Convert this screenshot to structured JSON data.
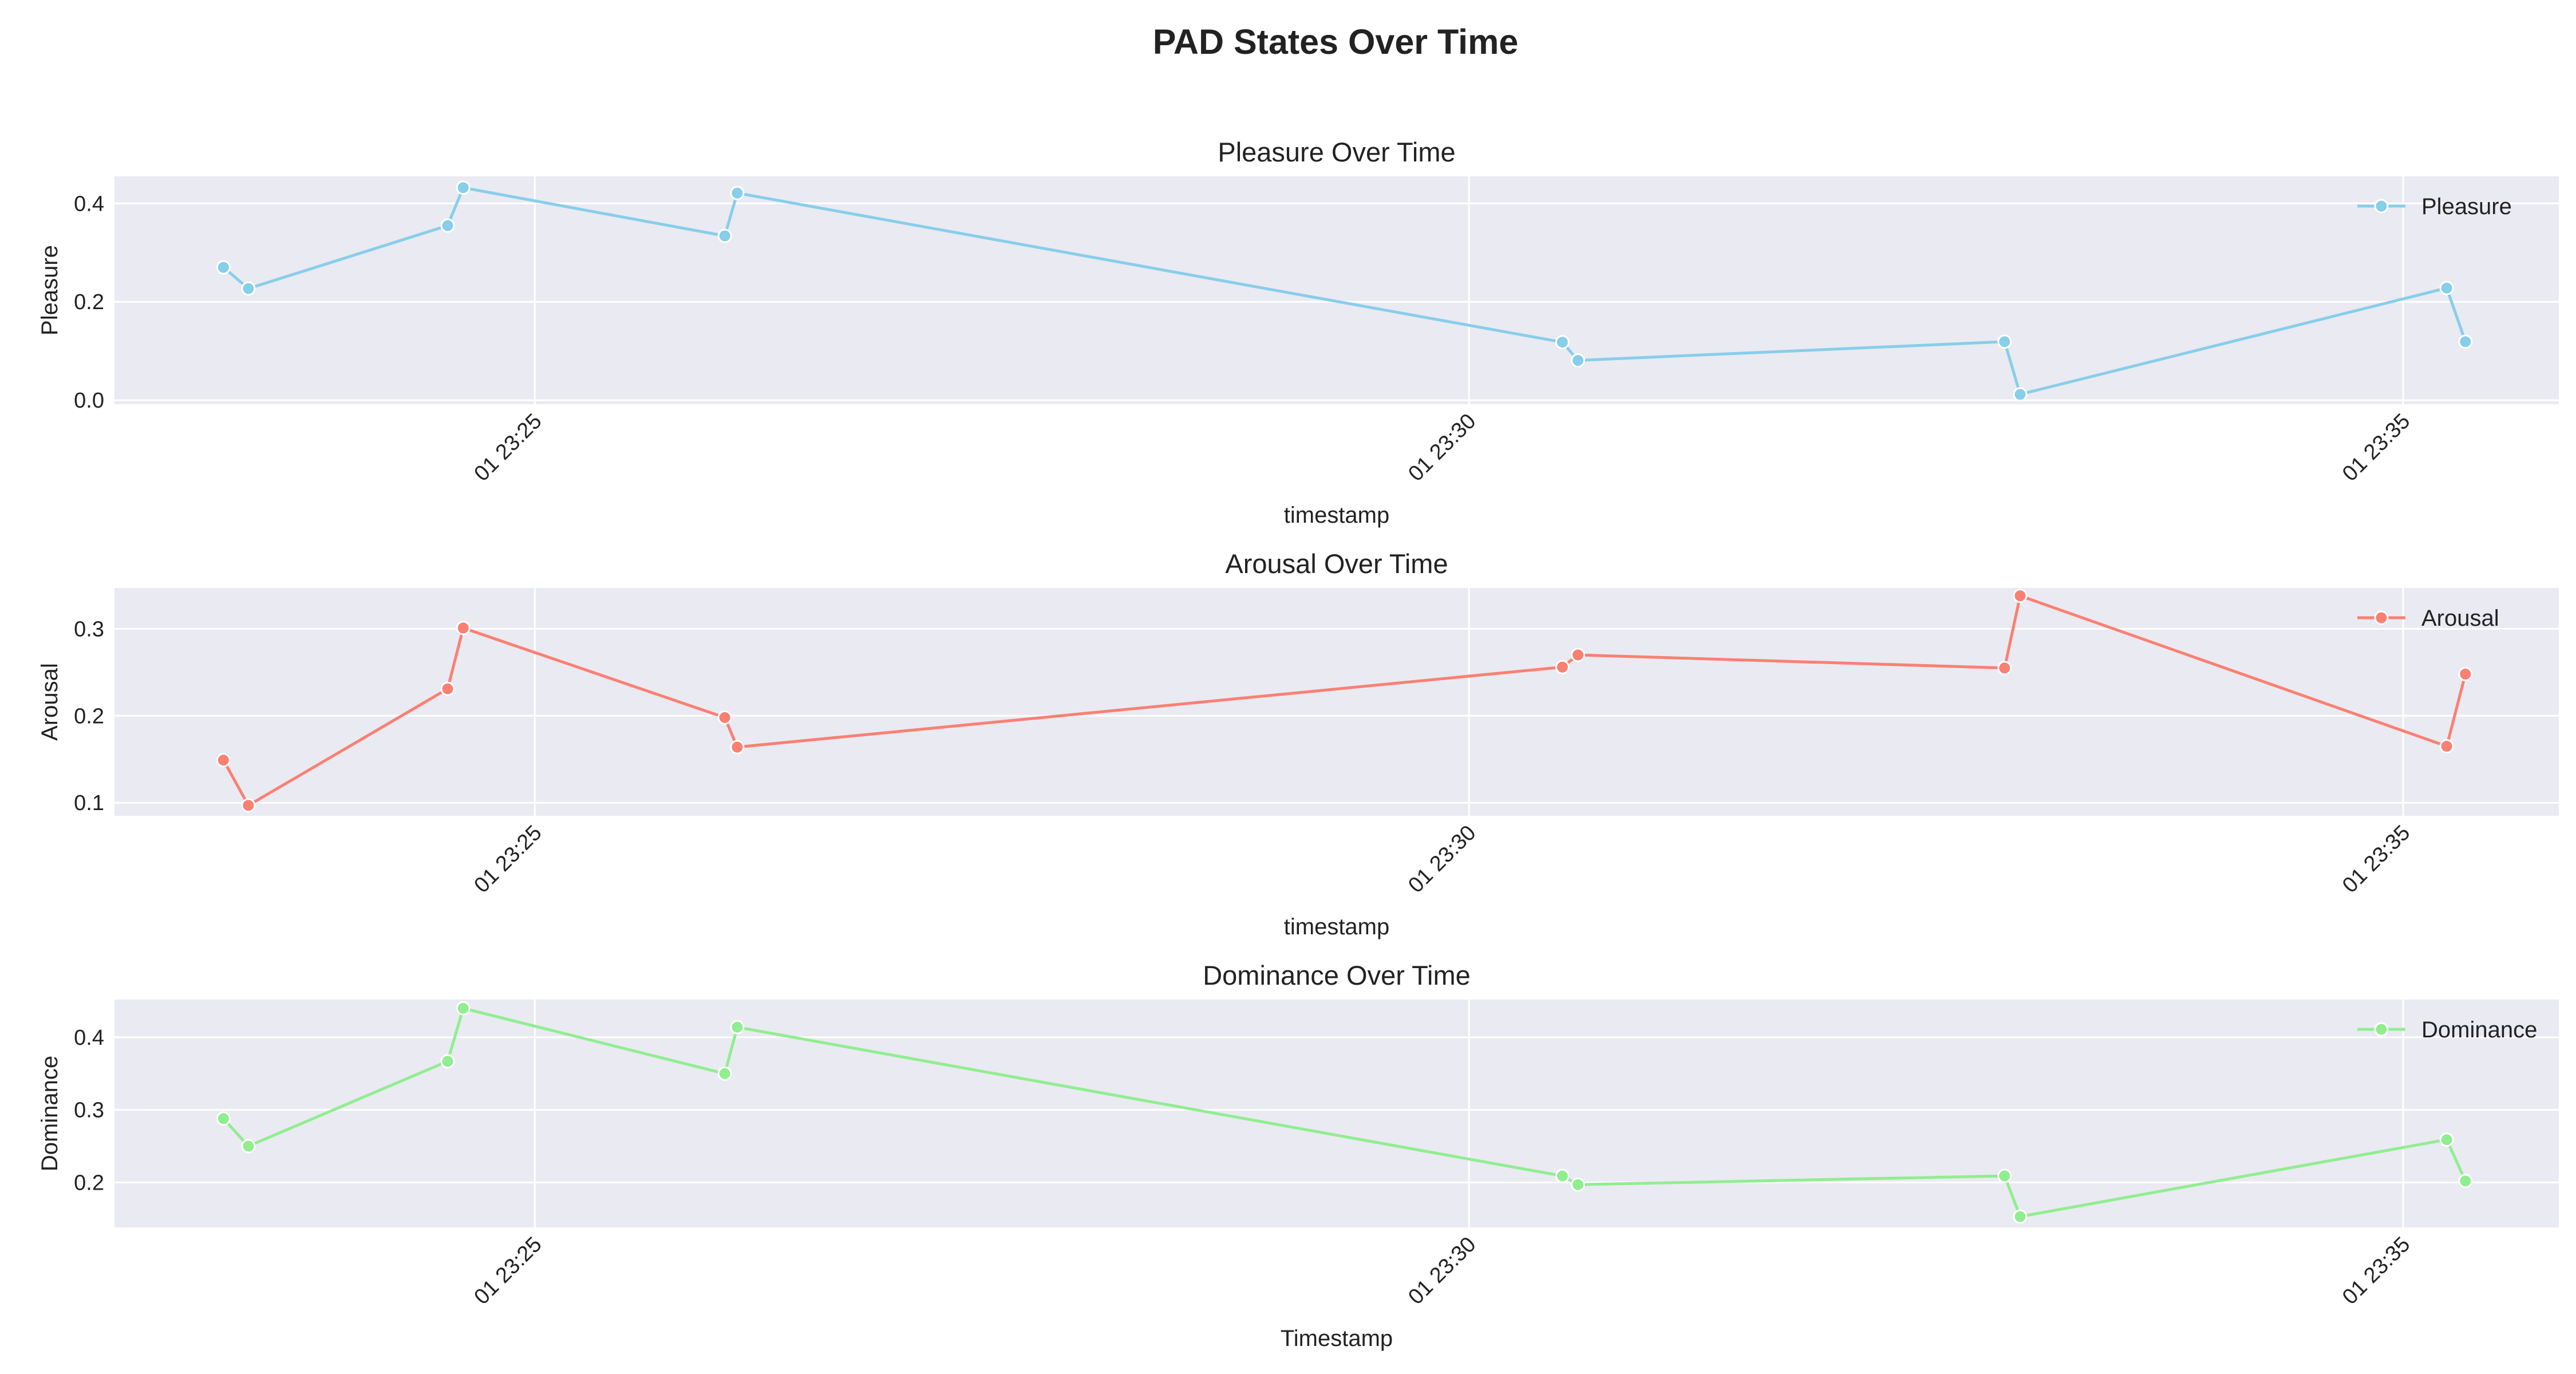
{
  "figure": {
    "title": "PAD States Over Time"
  },
  "chart_data": [
    {
      "type": "line",
      "title": "Pleasure Over Time",
      "xlabel": "timestamp",
      "ylabel": "Pleasure",
      "x_tick_labels": [
        "01 23:25",
        "01 23:30",
        "01 23:35"
      ],
      "x_ticks": [
        "23:25:00",
        "23:30:00",
        "23:35:00"
      ],
      "xlim": [
        "23:22:45",
        "23:35:50"
      ],
      "y_ticks": [
        0.0,
        0.2,
        0.4
      ],
      "y_tick_labels": [
        "0.0",
        "0.2",
        "0.4"
      ],
      "ylim": [
        -0.008,
        0.455
      ],
      "grid": true,
      "legend_position": "top-right",
      "series": [
        {
          "name": "Pleasure",
          "color": "#87CEEB",
          "x": [
            "23:23:20",
            "23:23:28",
            "23:24:32",
            "23:24:37",
            "23:26:01",
            "23:26:05",
            "23:30:30",
            "23:30:35",
            "23:32:52",
            "23:32:57",
            "23:35:14",
            "23:35:20"
          ],
          "values": [
            0.27,
            0.227,
            0.355,
            0.432,
            0.334,
            0.421,
            0.118,
            0.081,
            0.119,
            0.012,
            0.228,
            0.119
          ]
        }
      ]
    },
    {
      "type": "line",
      "title": "Arousal Over Time",
      "xlabel": "timestamp",
      "ylabel": "Arousal",
      "x_tick_labels": [
        "01 23:25",
        "01 23:30",
        "01 23:35"
      ],
      "x_ticks": [
        "23:25:00",
        "23:30:00",
        "23:35:00"
      ],
      "xlim": [
        "23:22:45",
        "23:35:50"
      ],
      "y_ticks": [
        0.1,
        0.2,
        0.3
      ],
      "y_tick_labels": [
        "0.1",
        "0.2",
        "0.3"
      ],
      "ylim": [
        0.085,
        0.347
      ],
      "grid": true,
      "legend_position": "top-right",
      "series": [
        {
          "name": "Arousal",
          "color": "#FA8072",
          "x": [
            "23:23:20",
            "23:23:28",
            "23:24:32",
            "23:24:37",
            "23:26:01",
            "23:26:05",
            "23:30:30",
            "23:30:35",
            "23:32:52",
            "23:32:57",
            "23:35:14",
            "23:35:20"
          ],
          "values": [
            0.149,
            0.097,
            0.231,
            0.301,
            0.198,
            0.164,
            0.256,
            0.27,
            0.255,
            0.338,
            0.165,
            0.248
          ]
        }
      ]
    },
    {
      "type": "line",
      "title": "Dominance Over Time",
      "xlabel": "Timestamp",
      "ylabel": "Dominance",
      "x_tick_labels": [
        "01 23:25",
        "01 23:30",
        "01 23:35"
      ],
      "x_ticks": [
        "23:25:00",
        "23:30:00",
        "23:35:00"
      ],
      "xlim": [
        "23:22:45",
        "23:35:50"
      ],
      "y_ticks": [
        0.2,
        0.3,
        0.4
      ],
      "y_tick_labels": [
        "0.2",
        "0.3",
        "0.4"
      ],
      "ylim": [
        0.138,
        0.452
      ],
      "grid": true,
      "legend_position": "top-right",
      "series": [
        {
          "name": "Dominance",
          "color": "#90EE90",
          "x": [
            "23:23:20",
            "23:23:28",
            "23:24:32",
            "23:24:37",
            "23:26:01",
            "23:26:05",
            "23:30:30",
            "23:30:35",
            "23:32:52",
            "23:32:57",
            "23:35:14",
            "23:35:20"
          ],
          "values": [
            0.288,
            0.25,
            0.367,
            0.44,
            0.35,
            0.414,
            0.209,
            0.197,
            0.209,
            0.153,
            0.259,
            0.202
          ]
        }
      ]
    }
  ]
}
